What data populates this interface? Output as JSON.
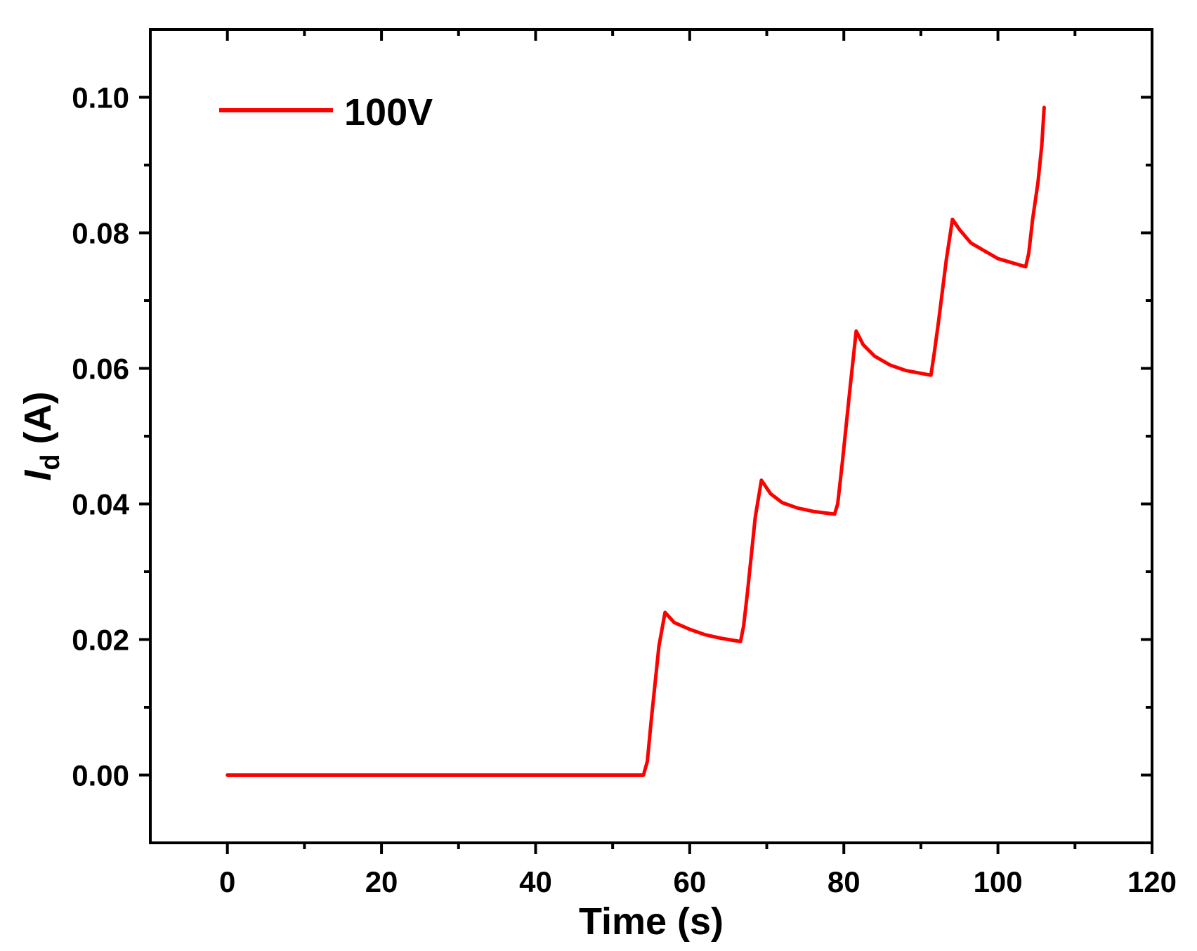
{
  "chart_data": {
    "type": "line",
    "title": "",
    "xlabel": "Time (s)",
    "ylabel_main": "I",
    "ylabel_sub": "d",
    "ylabel_unit": "(A)",
    "xlim": [
      -10,
      120
    ],
    "ylim": [
      -0.01,
      0.11
    ],
    "xticks": [
      0,
      20,
      40,
      60,
      80,
      100,
      120
    ],
    "xtick_labels": [
      "0",
      "20",
      "40",
      "60",
      "80",
      "100",
      "120"
    ],
    "yticks": [
      0.0,
      0.02,
      0.04,
      0.06,
      0.08,
      0.1
    ],
    "ytick_labels": [
      "0.00",
      "0.02",
      "0.04",
      "0.06",
      "0.08",
      "0.10"
    ],
    "legend_position": "top-left",
    "series": [
      {
        "name": "100V",
        "color": "#ff0000",
        "x": [
          0,
          54,
          54.5,
          55,
          56,
          56.8,
          58,
          60,
          62,
          64,
          66.6,
          67,
          67.5,
          68.5,
          69.3,
          70.5,
          72,
          74,
          76,
          78.8,
          79.2,
          79.8,
          80.8,
          81.6,
          82.5,
          84,
          86,
          88,
          91.3,
          91.7,
          92.3,
          93.3,
          94.1,
          95,
          96.5,
          98,
          100,
          103.6,
          104,
          104.5,
          105.2,
          105.7,
          106
        ],
        "values": [
          0,
          0,
          0.002,
          0.008,
          0.019,
          0.024,
          0.0225,
          0.0215,
          0.0207,
          0.0202,
          0.0197,
          0.022,
          0.027,
          0.038,
          0.0435,
          0.0415,
          0.0402,
          0.0394,
          0.0389,
          0.0385,
          0.04,
          0.046,
          0.057,
          0.0655,
          0.0635,
          0.0618,
          0.0605,
          0.0597,
          0.059,
          0.062,
          0.067,
          0.076,
          0.082,
          0.0805,
          0.0785,
          0.0775,
          0.0762,
          0.075,
          0.077,
          0.082,
          0.0875,
          0.093,
          0.0985
        ]
      }
    ]
  }
}
